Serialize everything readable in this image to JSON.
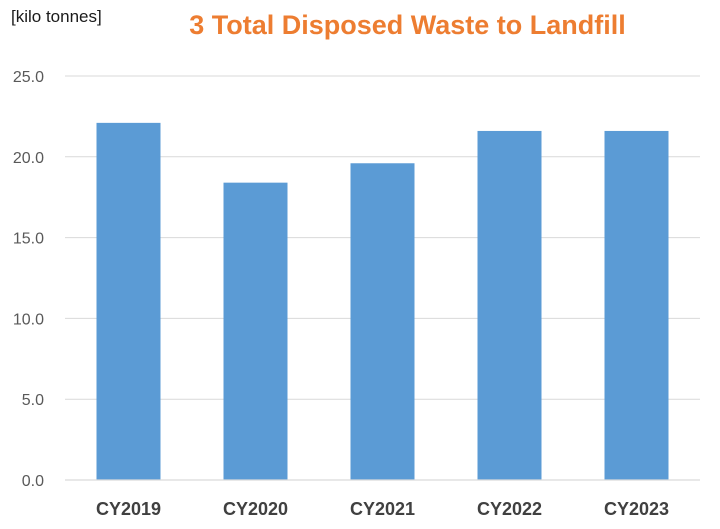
{
  "chart_data": {
    "type": "bar",
    "title": "3  Total Disposed Waste to Landfill",
    "unit_label": "[kilo tonnes]",
    "categories": [
      "CY2019",
      "CY2020",
      "CY2021",
      "CY2022",
      "CY2023"
    ],
    "values": [
      22.1,
      18.4,
      19.6,
      21.6,
      21.6
    ],
    "ylim": [
      0,
      25
    ],
    "yticks": [
      "0.0",
      "5.0",
      "10.0",
      "15.0",
      "20.0",
      "25.0"
    ],
    "ytick_values": [
      0,
      5,
      10,
      15,
      20,
      25
    ],
    "grid": true,
    "legend": "none",
    "colors": {
      "bar": "#5b9bd5",
      "title": "#ed7d31",
      "grid": "#d9d9d9",
      "axis_text": "#595959",
      "category_text": "#404040"
    }
  }
}
